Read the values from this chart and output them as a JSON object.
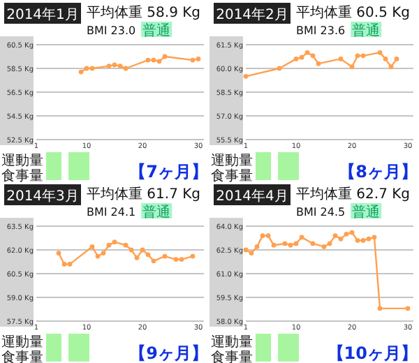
{
  "chart_data": [
    {
      "type": "line",
      "title": "2014年1月",
      "annotations": [
        "平均体重 58.9 Kg",
        "BMI 23.0",
        "普通",
        "運動量",
        "食事量",
        "【7ヶ月】"
      ],
      "x": [
        9,
        10,
        11,
        14,
        15,
        16,
        17,
        21,
        22,
        23,
        24,
        29,
        30
      ],
      "series": [
        {
          "color": "#ffa050",
          "values": [
            58.2,
            58.5,
            58.5,
            58.7,
            58.8,
            58.7,
            58.5,
            59.2,
            59.2,
            59.1,
            59.5,
            59.2,
            59.3
          ]
        }
      ],
      "xlim": [
        1,
        31
      ],
      "ylim": [
        52.5,
        60.5
      ],
      "xticks": [
        1,
        10,
        20,
        30
      ],
      "yticks": [
        {
          "value": 52.5,
          "label": "52.5 Kg"
        },
        {
          "value": 54.5,
          "label": "54.5 Kg"
        },
        {
          "value": 56.5,
          "label": "56.5 Kg"
        },
        {
          "value": 58.5,
          "label": "58.5 Kg"
        },
        {
          "value": 60.5,
          "label": "60.5 Kg"
        }
      ],
      "grid": "y",
      "marker": "circle"
    },
    {
      "type": "line",
      "title": "2014年2月",
      "annotations": [
        "平均体重 60.5 Kg",
        "BMI 23.6",
        "普通",
        "運動量",
        "食事量",
        "【8ヶ月】"
      ],
      "x": [
        1,
        7,
        10,
        11,
        12,
        13,
        14,
        18,
        20,
        21,
        22,
        25,
        26,
        27,
        28
      ],
      "series": [
        {
          "color": "#ffa050",
          "values": [
            59.5,
            60.0,
            60.6,
            60.7,
            61.0,
            60.8,
            60.3,
            60.6,
            60.1,
            60.8,
            60.8,
            61.0,
            60.6,
            60.1,
            60.6
          ]
        }
      ],
      "xlim": [
        1,
        31
      ],
      "ylim": [
        55.5,
        61.5
      ],
      "xticks": [
        1,
        10,
        20,
        30
      ],
      "yticks": [
        {
          "value": 55.5,
          "label": "55.5 Kg"
        },
        {
          "value": 57.0,
          "label": "57.0 Kg"
        },
        {
          "value": 58.5,
          "label": "58.5 Kg"
        },
        {
          "value": 60.0,
          "label": "60.0 Kg"
        },
        {
          "value": 61.5,
          "label": "61.5 Kg"
        }
      ],
      "grid": "y",
      "marker": "circle"
    },
    {
      "type": "line",
      "title": "2014年3月",
      "annotations": [
        "平均体重 61.7 Kg",
        "BMI 24.1",
        "普通",
        "運動量",
        "食事量",
        "【9ヶ月】"
      ],
      "x": [
        5,
        6,
        7,
        11,
        12,
        13,
        14,
        15,
        17,
        18,
        19,
        20,
        21,
        22,
        24,
        26,
        27,
        29
      ],
      "series": [
        {
          "color": "#ffa050",
          "values": [
            61.8,
            61.1,
            61.1,
            62.2,
            61.6,
            61.8,
            62.3,
            62.5,
            62.3,
            62.0,
            61.5,
            62.0,
            61.7,
            61.3,
            61.6,
            61.4,
            61.4,
            61.6
          ]
        }
      ],
      "xlim": [
        1,
        31
      ],
      "ylim": [
        57.5,
        63.5
      ],
      "xticks": [
        1,
        10,
        20,
        30
      ],
      "yticks": [
        {
          "value": 57.5,
          "label": "57.5 Kg"
        },
        {
          "value": 59.0,
          "label": "59.0 Kg"
        },
        {
          "value": 60.5,
          "label": "60.5 Kg"
        },
        {
          "value": 62.0,
          "label": "62.0 Kg"
        },
        {
          "value": 63.5,
          "label": "63.5 Kg"
        }
      ],
      "grid": "y",
      "marker": "circle"
    },
    {
      "type": "line",
      "title": "2014年4月",
      "annotations": [
        "平均体重 62.7 Kg",
        "BMI 24.5",
        "普通",
        "運動量",
        "食事量",
        "【10ヶ月】"
      ],
      "x": [
        1,
        2,
        3,
        4,
        5,
        6,
        8,
        9,
        10,
        11,
        13,
        15,
        16,
        17,
        18,
        19,
        20,
        21,
        22,
        23,
        24,
        25,
        30
      ],
      "series": [
        {
          "color": "#ffa050",
          "values": [
            62.5,
            62.3,
            62.7,
            63.4,
            63.4,
            62.8,
            62.9,
            62.8,
            62.9,
            63.3,
            62.9,
            62.7,
            62.9,
            63.4,
            63.2,
            63.5,
            63.6,
            63.1,
            63.1,
            63.2,
            63.3,
            58.8,
            58.8
          ]
        }
      ],
      "xlim": [
        1,
        31
      ],
      "ylim": [
        58.0,
        64.0
      ],
      "xticks": [
        1,
        10,
        20,
        30
      ],
      "yticks": [
        {
          "value": 58.0,
          "label": "58.0 Kg"
        },
        {
          "value": 59.5,
          "label": "59.5 Kg"
        },
        {
          "value": 61.0,
          "label": "61.0 Kg"
        },
        {
          "value": 62.5,
          "label": "62.5 Kg"
        },
        {
          "value": 64.0,
          "label": "64.0 Kg"
        }
      ],
      "grid": "y",
      "marker": "circle"
    }
  ]
}
